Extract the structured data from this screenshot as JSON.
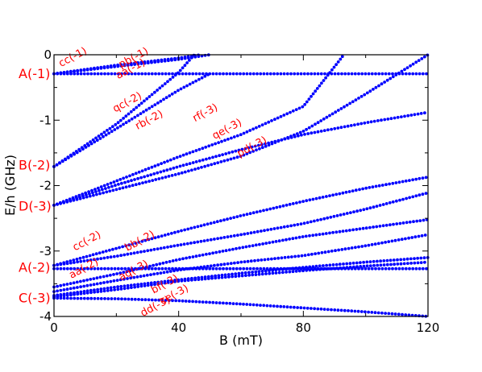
{
  "chart_data": {
    "type": "line",
    "xlabel": "B (mT)",
    "ylabel": "E/h (GHz)",
    "xlim": [
      0,
      120
    ],
    "ylim": [
      -4,
      0
    ],
    "xticks": [
      "0",
      "40",
      "80",
      "120"
    ],
    "yticks": [
      "0",
      "-1",
      "-2",
      "-3",
      "-4"
    ],
    "grid": false,
    "series_color": "#0000ff",
    "label_color": "#ff0000",
    "level_labels": [
      {
        "text": "A(-1)",
        "y": -0.28
      },
      {
        "text": "B(-2)",
        "y": -1.68
      },
      {
        "text": "D(-3)",
        "y": -2.31
      },
      {
        "text": "A(-2)",
        "y": -3.24
      },
      {
        "text": "C(-3)",
        "y": -3.71
      }
    ],
    "curve_labels": [
      {
        "text": "cc(-1)",
        "x": 6.5,
        "y": -0.08
      },
      {
        "text": "pb(-1)",
        "x": 26,
        "y": -0.09
      },
      {
        "text": "aa(-1)",
        "x": 25,
        "y": -0.26
      },
      {
        "text": "qc(-2)",
        "x": 24,
        "y": -0.77
      },
      {
        "text": "rb(-2)",
        "x": 31,
        "y": -1.04
      },
      {
        "text": "rf(-3)",
        "x": 49,
        "y": -0.93
      },
      {
        "text": "qe(-3)",
        "x": 56,
        "y": -1.18
      },
      {
        "text": "pd(-3)",
        "x": 64,
        "y": -1.45
      },
      {
        "text": "cc(-2)",
        "x": 11,
        "y": -2.89
      },
      {
        "text": "bb(-2)",
        "x": 28,
        "y": -2.89
      },
      {
        "text": "aa(-2)",
        "x": 10,
        "y": -3.31
      },
      {
        "text": "aq(-3)",
        "x": 26,
        "y": -3.34
      },
      {
        "text": "bf(-3)",
        "x": 36,
        "y": -3.55
      },
      {
        "text": "ce(-3)",
        "x": 39,
        "y": -3.71
      },
      {
        "text": "dd(-3)",
        "x": 33,
        "y": -3.89
      }
    ],
    "series": [
      {
        "x": [
          0,
          20,
          40,
          47
        ],
        "y": [
          -0.29,
          -0.16,
          -0.05,
          0.0
        ]
      },
      {
        "x": [
          0,
          20,
          40,
          50
        ],
        "y": [
          -0.29,
          -0.18,
          -0.07,
          0.0
        ]
      },
      {
        "x": [
          0,
          40,
          80,
          120
        ],
        "y": [
          -0.29,
          -0.29,
          -0.29,
          -0.29
        ]
      },
      {
        "x": [
          0,
          20,
          40,
          45
        ],
        "y": [
          -1.71,
          -1.06,
          -0.27,
          0.0
        ]
      },
      {
        "x": [
          0,
          20,
          40,
          50
        ],
        "y": [
          -1.71,
          -1.13,
          -0.54,
          -0.29
        ]
      },
      {
        "x": [
          0,
          20,
          40,
          60,
          80,
          93
        ],
        "y": [
          -2.3,
          -1.93,
          -1.56,
          -1.22,
          -0.79,
          0.0
        ]
      },
      {
        "x": [
          0,
          20,
          40,
          60,
          80,
          100,
          120
        ],
        "y": [
          -2.3,
          -1.99,
          -1.71,
          -1.45,
          -1.22,
          -1.04,
          -0.88
        ]
      },
      {
        "x": [
          0,
          40,
          60,
          80,
          100,
          120
        ],
        "y": [
          -2.3,
          -1.82,
          -1.55,
          -1.17,
          -0.6,
          0.0
        ]
      },
      {
        "x": [
          0,
          20,
          40,
          60,
          80,
          100,
          120
        ],
        "y": [
          -3.22,
          -2.96,
          -2.7,
          -2.46,
          -2.24,
          -2.04,
          -1.87
        ]
      },
      {
        "x": [
          0,
          20,
          40,
          60,
          80,
          100,
          120
        ],
        "y": [
          -3.22,
          -3.08,
          -2.91,
          -2.75,
          -2.58,
          -2.36,
          -2.11
        ]
      },
      {
        "x": [
          0,
          40,
          80,
          120
        ],
        "y": [
          -3.27,
          -3.27,
          -3.27,
          -3.27
        ]
      },
      {
        "x": [
          0,
          20,
          40,
          60,
          80,
          100,
          120
        ],
        "y": [
          -3.55,
          -3.35,
          -3.13,
          -2.95,
          -2.78,
          -2.65,
          -2.52
        ]
      },
      {
        "x": [
          0,
          20,
          40,
          60,
          80,
          100,
          120
        ],
        "y": [
          -3.62,
          -3.45,
          -3.29,
          -3.17,
          -3.07,
          -2.92,
          -2.75
        ]
      },
      {
        "x": [
          0,
          20,
          40,
          60,
          80,
          100,
          120
        ],
        "y": [
          -3.68,
          -3.55,
          -3.44,
          -3.34,
          -3.25,
          -3.17,
          -3.1
        ]
      },
      {
        "x": [
          0,
          20,
          40,
          60,
          80,
          100,
          120
        ],
        "y": [
          -3.7,
          -3.59,
          -3.46,
          -3.38,
          -3.3,
          -3.23,
          -3.17
        ]
      },
      {
        "x": [
          0,
          20,
          40,
          60,
          80,
          100,
          120
        ],
        "y": [
          -3.72,
          -3.73,
          -3.76,
          -3.81,
          -3.87,
          -3.93,
          -4.0
        ]
      }
    ]
  }
}
